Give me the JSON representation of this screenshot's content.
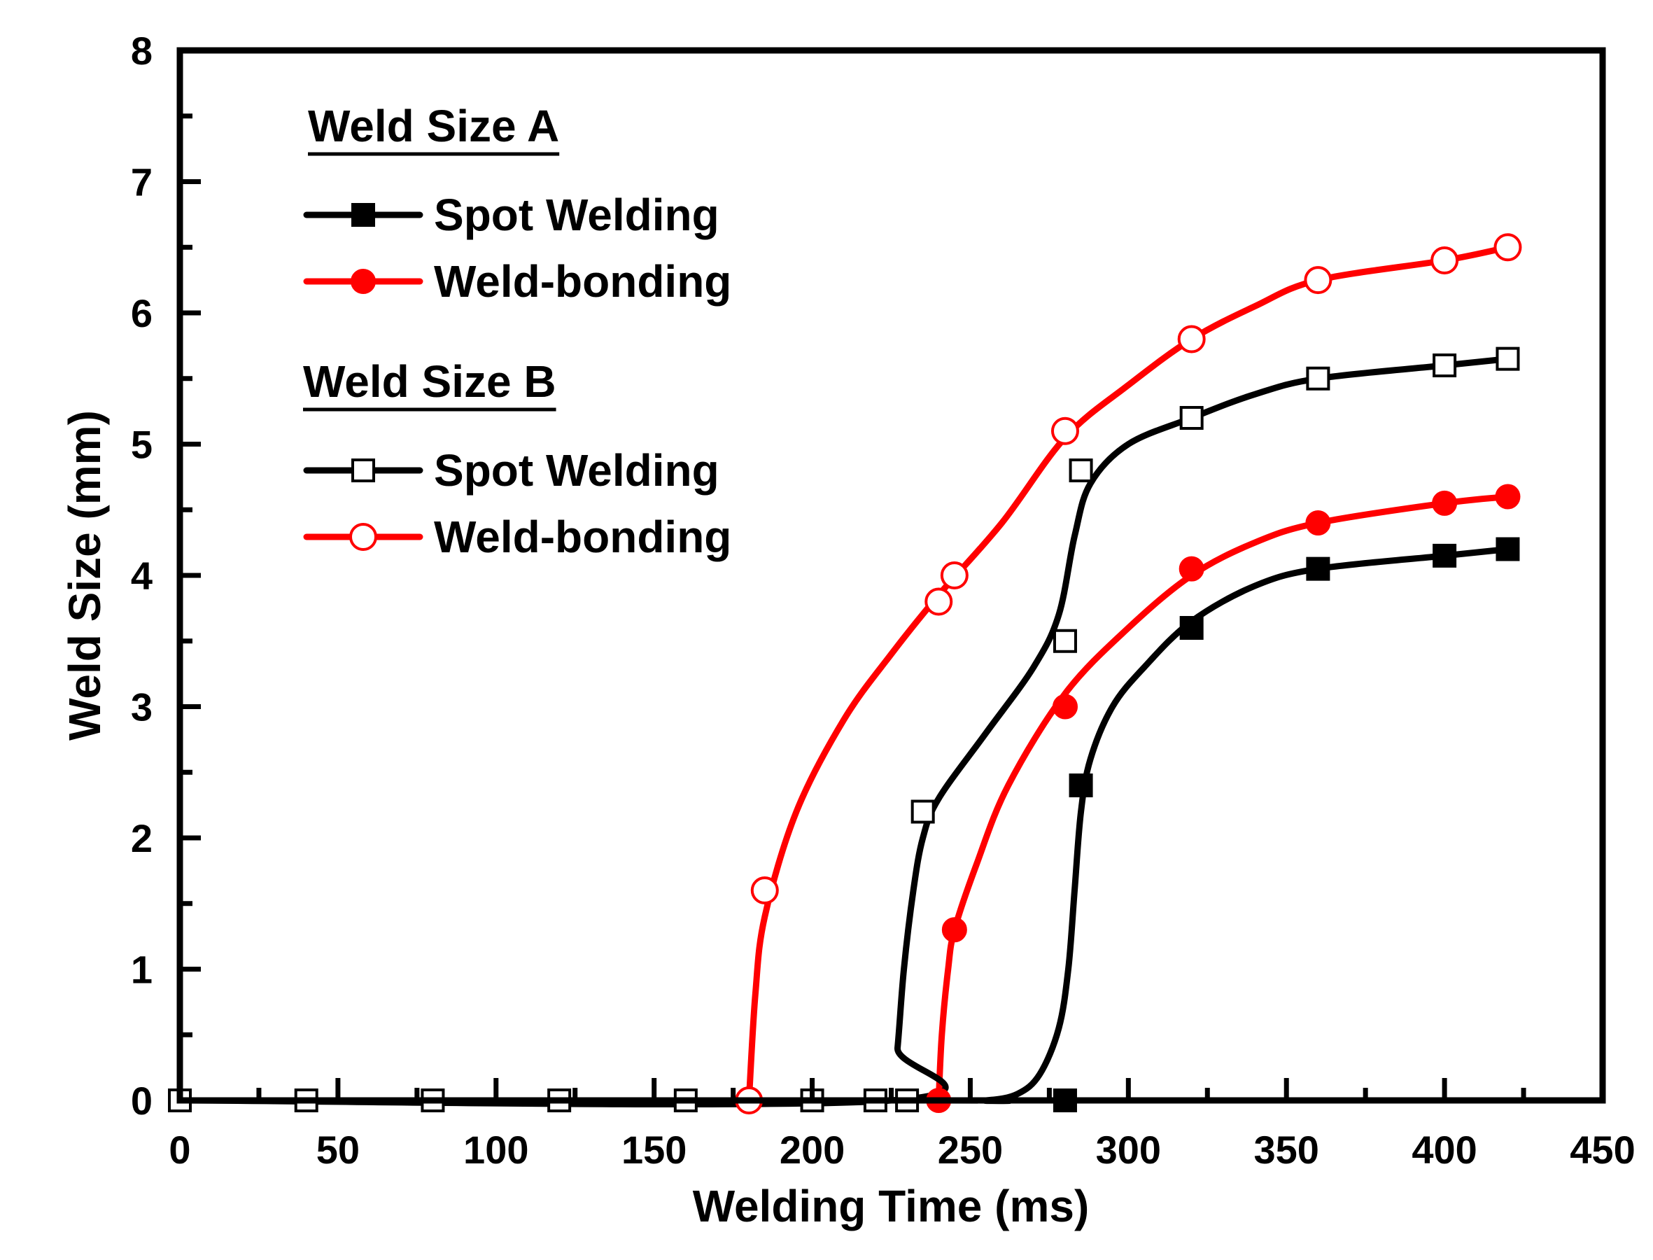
{
  "chart_data": {
    "type": "line",
    "title": "",
    "xlabel": "Welding Time (ms)",
    "ylabel": "Weld Size (mm)",
    "xlim": [
      0,
      450
    ],
    "ylim": [
      0,
      8
    ],
    "xticks": [
      0,
      50,
      100,
      150,
      200,
      250,
      300,
      350,
      400,
      450
    ],
    "yticks": [
      0,
      1,
      2,
      3,
      4,
      5,
      6,
      7,
      8
    ],
    "xtick_labels": [
      "0",
      "50",
      "100",
      "150",
      "200",
      "250",
      "300",
      "350",
      "400",
      "450"
    ],
    "ytick_labels": [
      "0",
      "1",
      "2",
      "3",
      "4",
      "5",
      "6",
      "7",
      "8"
    ],
    "grid": false,
    "legend_position": "top-left",
    "legend_groups": [
      {
        "heading": "Weld Size A",
        "series_keys": [
          "a_spot",
          "a_bond"
        ]
      },
      {
        "heading": "Weld Size B",
        "series_keys": [
          "b_spot",
          "b_bond"
        ]
      }
    ],
    "series": [
      {
        "key": "a_spot",
        "name": "Spot Welding",
        "group": "Weld Size A",
        "color": "#000000",
        "marker": "square",
        "filled": true,
        "points": [
          [
            280,
            0
          ],
          [
            285,
            2.4
          ],
          [
            320,
            3.6
          ],
          [
            360,
            4.05
          ],
          [
            400,
            4.15
          ],
          [
            420,
            4.2
          ]
        ],
        "curve": [
          [
            0,
            0
          ],
          [
            240,
            0
          ],
          [
            255,
            0
          ],
          [
            265,
            0.05
          ],
          [
            272,
            0.2
          ],
          [
            278,
            0.55
          ],
          [
            281,
            1.0
          ],
          [
            283,
            1.6
          ],
          [
            285,
            2.2
          ],
          [
            288,
            2.6
          ],
          [
            295,
            3.0
          ],
          [
            305,
            3.3
          ],
          [
            320,
            3.65
          ],
          [
            340,
            3.92
          ],
          [
            360,
            4.05
          ],
          [
            400,
            4.15
          ],
          [
            420,
            4.2
          ]
        ]
      },
      {
        "key": "a_bond",
        "name": "Weld-bonding",
        "group": "Weld Size A",
        "color": "#ff0000",
        "marker": "circle",
        "filled": true,
        "points": [
          [
            240,
            0
          ],
          [
            245,
            1.3
          ],
          [
            280,
            3.0
          ],
          [
            320,
            4.05
          ],
          [
            360,
            4.4
          ],
          [
            400,
            4.55
          ],
          [
            420,
            4.6
          ]
        ],
        "curve": [
          [
            240,
            0
          ],
          [
            241,
            0.5
          ],
          [
            243,
            1.0
          ],
          [
            245,
            1.3
          ],
          [
            252,
            1.8
          ],
          [
            262,
            2.4
          ],
          [
            280,
            3.1
          ],
          [
            300,
            3.6
          ],
          [
            320,
            4.0
          ],
          [
            340,
            4.25
          ],
          [
            360,
            4.4
          ],
          [
            400,
            4.55
          ],
          [
            420,
            4.6
          ]
        ]
      },
      {
        "key": "b_spot",
        "name": "Spot Welding",
        "group": "Weld Size B",
        "color": "#000000",
        "marker": "square",
        "filled": false,
        "points": [
          [
            0,
            0
          ],
          [
            40,
            0
          ],
          [
            80,
            0
          ],
          [
            120,
            0
          ],
          [
            160,
            0
          ],
          [
            200,
            0
          ],
          [
            220,
            0
          ],
          [
            230,
            0
          ],
          [
            235,
            2.2
          ],
          [
            280,
            3.5
          ],
          [
            285,
            4.8
          ],
          [
            320,
            5.2
          ],
          [
            360,
            5.5
          ],
          [
            400,
            5.6
          ],
          [
            420,
            5.65
          ]
        ],
        "curve": [
          [
            0,
            0
          ],
          [
            225,
            0
          ],
          [
            227,
            0.4
          ],
          [
            229,
            1.0
          ],
          [
            232,
            1.6
          ],
          [
            235,
            2.0
          ],
          [
            240,
            2.3
          ],
          [
            255,
            2.8
          ],
          [
            270,
            3.3
          ],
          [
            278,
            3.7
          ],
          [
            283,
            4.3
          ],
          [
            288,
            4.7
          ],
          [
            300,
            5.0
          ],
          [
            320,
            5.2
          ],
          [
            340,
            5.38
          ],
          [
            360,
            5.5
          ],
          [
            400,
            5.6
          ],
          [
            420,
            5.65
          ]
        ]
      },
      {
        "key": "b_bond",
        "name": "Weld-bonding",
        "group": "Weld Size B",
        "color": "#ff0000",
        "marker": "circle",
        "filled": false,
        "points": [
          [
            180,
            0
          ],
          [
            185,
            1.6
          ],
          [
            240,
            3.8
          ],
          [
            245,
            4.0
          ],
          [
            280,
            5.1
          ],
          [
            320,
            5.8
          ],
          [
            360,
            6.25
          ],
          [
            400,
            6.4
          ],
          [
            420,
            6.5
          ]
        ],
        "curve": [
          [
            180,
            0
          ],
          [
            182,
            0.8
          ],
          [
            185,
            1.4
          ],
          [
            195,
            2.2
          ],
          [
            210,
            2.9
          ],
          [
            225,
            3.4
          ],
          [
            240,
            3.85
          ],
          [
            260,
            4.4
          ],
          [
            280,
            5.05
          ],
          [
            300,
            5.45
          ],
          [
            320,
            5.8
          ],
          [
            340,
            6.05
          ],
          [
            360,
            6.25
          ],
          [
            400,
            6.4
          ],
          [
            420,
            6.5
          ]
        ]
      }
    ]
  }
}
